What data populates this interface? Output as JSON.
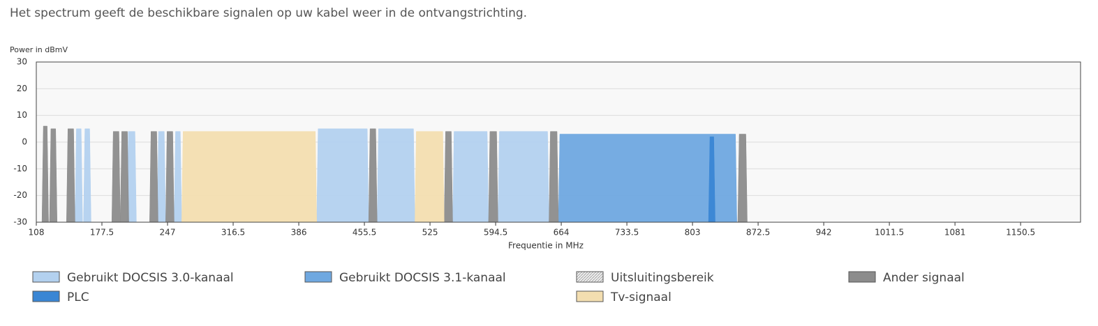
{
  "description": "Het spectrum geeft de beschikbare signalen op uw kabel weer in de ontvangstrichting.",
  "chart_data": {
    "type": "spectrum",
    "y_label": "Power in dBmV",
    "x_label": "Frequentie in MHz",
    "xlim": [
      108,
      1214
    ],
    "ylim": [
      -30,
      30
    ],
    "xticks": [
      108,
      177.5,
      247,
      316.5,
      386,
      455.5,
      525,
      594.5,
      664,
      733.5,
      803,
      872.5,
      942,
      1011.5,
      1081,
      1150.5
    ],
    "yticks": [
      -30,
      -20,
      -10,
      0,
      10,
      20,
      30
    ],
    "grid": true,
    "series": [
      {
        "name": "Gebruikt DOCSIS 3.0-kanaal",
        "color": "#b3d1ef",
        "bands": [
          {
            "from": 149,
            "to": 157,
            "power": 5
          },
          {
            "from": 158,
            "to": 166,
            "power": 5
          },
          {
            "from": 204,
            "to": 214,
            "power": 4
          },
          {
            "from": 236,
            "to": 245,
            "power": 4
          },
          {
            "from": 254,
            "to": 262,
            "power": 4
          },
          {
            "from": 405,
            "to": 460,
            "power": 5
          },
          {
            "from": 469,
            "to": 509,
            "power": 5
          },
          {
            "from": 549,
            "to": 587,
            "power": 4
          },
          {
            "from": 597,
            "to": 651,
            "power": 4
          }
        ]
      },
      {
        "name": "Gebruikt DOCSIS 3.1-kanaal",
        "color": "#6fa8e0",
        "bands": [
          {
            "from": 661,
            "to": 850,
            "power": 3
          }
        ]
      },
      {
        "name": "Uitsluitingsbereik",
        "color": "#e0e0e0",
        "bands": []
      },
      {
        "name": "Ander signaal",
        "color": "#8c8c8c",
        "bands": [
          {
            "from": 114,
            "to": 121,
            "power": 6
          },
          {
            "from": 122,
            "to": 130,
            "power": 5
          },
          {
            "from": 140,
            "to": 149,
            "power": 5
          },
          {
            "from": 188,
            "to": 197,
            "power": 4
          },
          {
            "from": 197,
            "to": 206,
            "power": 4
          },
          {
            "from": 228,
            "to": 237,
            "power": 4
          },
          {
            "from": 245,
            "to": 254,
            "power": 4
          },
          {
            "from": 460,
            "to": 469,
            "power": 5
          },
          {
            "from": 540,
            "to": 549,
            "power": 4
          },
          {
            "from": 587,
            "to": 597,
            "power": 4
          },
          {
            "from": 651,
            "to": 661,
            "power": 4
          },
          {
            "from": 851,
            "to": 861,
            "power": 3
          }
        ]
      },
      {
        "name": "PLC",
        "color": "#3a86d4",
        "bands": [
          {
            "from": 820,
            "to": 827,
            "power": 2
          }
        ]
      },
      {
        "name": "Tv-signaal",
        "color": "#f3deb0",
        "bands": [
          {
            "from": 262,
            "to": 405,
            "power": 4
          },
          {
            "from": 509,
            "to": 540,
            "power": 4
          }
        ]
      }
    ]
  }
}
